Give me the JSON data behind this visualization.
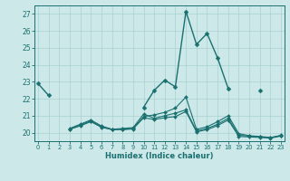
{
  "xlabel": "Humidex (Indice chaleur)",
  "x": [
    0,
    1,
    2,
    3,
    4,
    5,
    6,
    7,
    8,
    9,
    10,
    11,
    12,
    13,
    14,
    15,
    16,
    17,
    18,
    19,
    20,
    21,
    22,
    23
  ],
  "line1": [
    22.9,
    22.2,
    null,
    null,
    null,
    null,
    null,
    null,
    null,
    null,
    21.5,
    22.5,
    23.1,
    22.7,
    27.15,
    25.2,
    25.85,
    24.4,
    22.6,
    null,
    null,
    22.5,
    null,
    null
  ],
  "line2": [
    null,
    null,
    null,
    20.25,
    20.5,
    20.75,
    20.4,
    20.2,
    20.25,
    20.3,
    21.1,
    20.85,
    21.0,
    21.15,
    21.35,
    20.1,
    20.25,
    20.5,
    20.85,
    19.85,
    19.8,
    19.75,
    19.7,
    19.85
  ],
  "line3": [
    null,
    null,
    null,
    20.2,
    20.45,
    20.7,
    20.35,
    20.2,
    20.2,
    20.25,
    20.95,
    21.05,
    21.2,
    21.45,
    22.1,
    20.2,
    20.35,
    20.65,
    21.0,
    19.95,
    19.82,
    19.78,
    19.72,
    19.82
  ],
  "line4": [
    null,
    null,
    null,
    20.2,
    20.4,
    20.65,
    20.32,
    20.18,
    20.18,
    20.22,
    20.88,
    20.78,
    20.88,
    20.95,
    21.25,
    20.05,
    20.18,
    20.42,
    20.75,
    19.78,
    19.75,
    19.72,
    19.68,
    19.8
  ],
  "color": "#1a7070",
  "bg_color": "#cce8e8",
  "grid_color": "#aad0d0",
  "ylim": [
    19.5,
    27.5
  ],
  "yticks": [
    20,
    21,
    22,
    23,
    24,
    25,
    26,
    27
  ],
  "xlim": [
    -0.3,
    23.3
  ]
}
